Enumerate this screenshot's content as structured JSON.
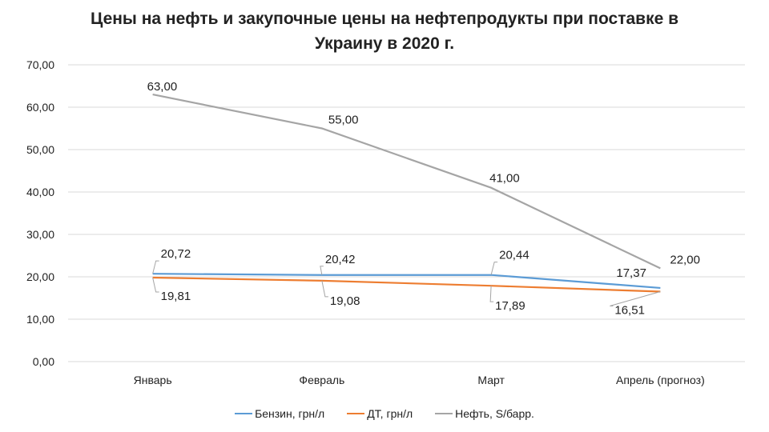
{
  "chart_data": {
    "type": "line",
    "title": "Цены на нефть и закупочные цены на нефтепродукты при поставке в Украину в 2020 г.",
    "title_lines": [
      "Цены на нефть и закупочные цены на нефтепродукты при поставке в",
      "Украину в 2020 г."
    ],
    "categories": [
      "Январь",
      "Февраль",
      "Март",
      "Апрель (прогноз)"
    ],
    "ylim": [
      0,
      70
    ],
    "yticks": [
      "0,00",
      "10,00",
      "20,00",
      "30,00",
      "40,00",
      "50,00",
      "60,00",
      "70,00"
    ],
    "grid": true,
    "legend_position": "bottom",
    "series": [
      {
        "name": "Бензин, грн/л",
        "color": "#5b9bd5",
        "values": [
          20.72,
          20.42,
          20.44,
          17.37
        ],
        "labels": [
          "20,72",
          "20,42",
          "20,44",
          "17,37"
        ]
      },
      {
        "name": "ДТ, грн/л",
        "color": "#ed7d31",
        "values": [
          19.81,
          19.08,
          17.89,
          16.51
        ],
        "labels": [
          "19,81",
          "19,08",
          "17,89",
          "16,51"
        ]
      },
      {
        "name": "Нефть, S/барр.",
        "color": "#a5a5a5",
        "values": [
          63,
          55,
          41,
          22
        ],
        "labels": [
          "63,00",
          "55,00",
          "41,00",
          "22,00"
        ]
      }
    ]
  }
}
